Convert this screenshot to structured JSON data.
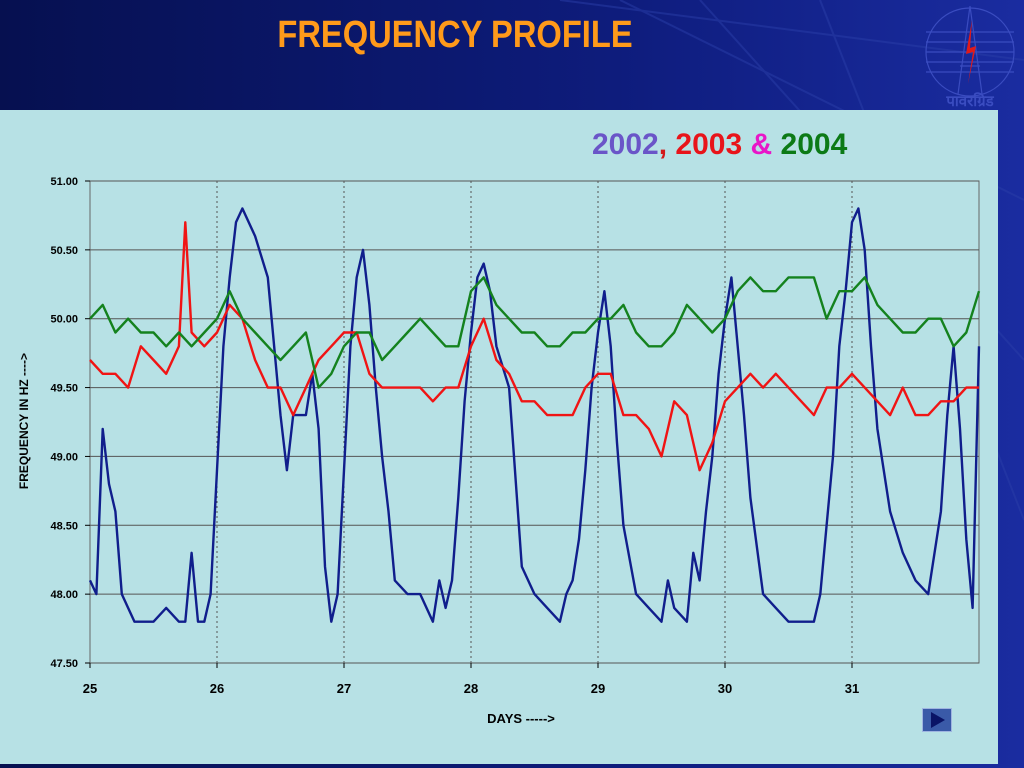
{
  "slide": {
    "title": "FREQUENCY PROFILE",
    "logo_text": "पावरग्रिड"
  },
  "legend_title": [
    {
      "text": "2002",
      "color": "#6a55c8"
    },
    {
      "text": ", ",
      "color": "#d21a1a"
    },
    {
      "text": "2003",
      "color": "#e8141a"
    },
    {
      "text": " & ",
      "color": "#e816c8"
    },
    {
      "text": "2004",
      "color": "#0c7a16"
    }
  ],
  "colors": {
    "background": "#0a1466",
    "panel": "#b7e1e5",
    "title": "#ff9a1a",
    "series_2002": "#101e8c",
    "series_2003": "#f01414",
    "series_2004": "#14821e"
  },
  "nav": {
    "next_icon": "play-next-icon"
  },
  "chart_data": {
    "type": "line",
    "title": "",
    "xlabel": "DAYS ----->",
    "ylabel": "FREQUENCY IN HZ ---->",
    "xlim": [
      25,
      32
    ],
    "ylim": [
      47.5,
      51.0
    ],
    "x_ticks": [
      25,
      26,
      27,
      28,
      29,
      30,
      31
    ],
    "x_tick_labels": [
      "25",
      "26",
      "27",
      "28",
      "29",
      "30",
      "31"
    ],
    "y_ticks": [
      47.5,
      48.0,
      48.5,
      49.0,
      49.5,
      50.0,
      50.5,
      51.0
    ],
    "y_tick_labels": [
      "47.50",
      "48.00",
      "48.50",
      "49.00",
      "49.50",
      "50.00",
      "50.50",
      "51.00"
    ],
    "grid": "horizontal solid, vertical dotted",
    "series": [
      {
        "name": "2002",
        "color": "#101e8c",
        "x": [
          25.0,
          25.05,
          25.1,
          25.15,
          25.2,
          25.25,
          25.3,
          25.35,
          25.4,
          25.5,
          25.6,
          25.7,
          25.75,
          25.8,
          25.85,
          25.9,
          25.95,
          26.0,
          26.05,
          26.1,
          26.15,
          26.2,
          26.3,
          26.4,
          26.5,
          26.55,
          26.6,
          26.7,
          26.75,
          26.8,
          26.85,
          26.9,
          26.95,
          27.0,
          27.05,
          27.1,
          27.15,
          27.2,
          27.25,
          27.3,
          27.35,
          27.4,
          27.5,
          27.6,
          27.7,
          27.75,
          27.8,
          27.85,
          27.9,
          27.95,
          28.0,
          28.05,
          28.1,
          28.15,
          28.2,
          28.3,
          28.4,
          28.5,
          28.6,
          28.7,
          28.75,
          28.8,
          28.85,
          28.9,
          28.95,
          29.0,
          29.05,
          29.1,
          29.15,
          29.2,
          29.3,
          29.4,
          29.5,
          29.55,
          29.6,
          29.7,
          29.75,
          29.8,
          29.85,
          29.9,
          29.95,
          30.0,
          30.05,
          30.1,
          30.15,
          30.2,
          30.3,
          30.4,
          30.5,
          30.6,
          30.7,
          30.75,
          30.8,
          30.85,
          30.9,
          30.95,
          31.0,
          31.05,
          31.1,
          31.15,
          31.2,
          31.3,
          31.4,
          31.5,
          31.6,
          31.7,
          31.75,
          31.8,
          31.85,
          31.9,
          31.95,
          32.0
        ],
        "y": [
          48.1,
          48.0,
          49.2,
          48.8,
          48.6,
          48.0,
          47.9,
          47.8,
          47.8,
          47.8,
          47.9,
          47.8,
          47.8,
          48.3,
          47.8,
          47.8,
          48.0,
          48.9,
          49.8,
          50.3,
          50.7,
          50.8,
          50.6,
          50.3,
          49.3,
          48.9,
          49.3,
          49.3,
          49.6,
          49.2,
          48.2,
          47.8,
          48.0,
          48.9,
          49.8,
          50.3,
          50.5,
          50.1,
          49.5,
          49.0,
          48.6,
          48.1,
          48.0,
          48.0,
          47.8,
          48.1,
          47.9,
          48.1,
          48.7,
          49.4,
          49.9,
          50.3,
          50.4,
          50.2,
          49.8,
          49.5,
          48.2,
          48.0,
          47.9,
          47.8,
          48.0,
          48.1,
          48.4,
          48.9,
          49.5,
          49.9,
          50.2,
          49.8,
          49.1,
          48.5,
          48.0,
          47.9,
          47.8,
          48.1,
          47.9,
          47.8,
          48.3,
          48.1,
          48.6,
          49.0,
          49.6,
          50.0,
          50.3,
          49.8,
          49.3,
          48.7,
          48.0,
          47.9,
          47.8,
          47.8,
          47.8,
          48.0,
          48.5,
          49.0,
          49.8,
          50.2,
          50.7,
          50.8,
          50.5,
          49.8,
          49.2,
          48.6,
          48.3,
          48.1,
          48.0,
          48.6,
          49.3,
          49.8,
          49.2,
          48.4,
          47.9,
          49.8
        ]
      },
      {
        "name": "2003",
        "color": "#f01414",
        "x": [
          25.0,
          25.1,
          25.2,
          25.3,
          25.4,
          25.5,
          25.6,
          25.7,
          25.75,
          25.8,
          25.9,
          26.0,
          26.1,
          26.2,
          26.3,
          26.4,
          26.5,
          26.6,
          26.7,
          26.8,
          26.9,
          27.0,
          27.1,
          27.2,
          27.3,
          27.4,
          27.5,
          27.6,
          27.7,
          27.8,
          27.9,
          28.0,
          28.1,
          28.2,
          28.3,
          28.4,
          28.5,
          28.6,
          28.7,
          28.8,
          28.9,
          29.0,
          29.1,
          29.2,
          29.3,
          29.4,
          29.5,
          29.6,
          29.7,
          29.8,
          29.9,
          30.0,
          30.1,
          30.2,
          30.3,
          30.4,
          30.5,
          30.6,
          30.7,
          30.8,
          30.9,
          31.0,
          31.1,
          31.2,
          31.3,
          31.4,
          31.5,
          31.6,
          31.7,
          31.8,
          31.9,
          32.0
        ],
        "y": [
          49.7,
          49.6,
          49.6,
          49.5,
          49.8,
          49.7,
          49.6,
          49.8,
          50.7,
          49.9,
          49.8,
          49.9,
          50.1,
          50.0,
          49.7,
          49.5,
          49.5,
          49.3,
          49.5,
          49.7,
          49.8,
          49.9,
          49.9,
          49.6,
          49.5,
          49.5,
          49.5,
          49.5,
          49.4,
          49.5,
          49.5,
          49.8,
          50.0,
          49.7,
          49.6,
          49.4,
          49.4,
          49.3,
          49.3,
          49.3,
          49.5,
          49.6,
          49.6,
          49.3,
          49.3,
          49.2,
          49.0,
          49.4,
          49.3,
          48.9,
          49.1,
          49.4,
          49.5,
          49.6,
          49.5,
          49.6,
          49.5,
          49.4,
          49.3,
          49.5,
          49.5,
          49.6,
          49.5,
          49.4,
          49.3,
          49.5,
          49.3,
          49.3,
          49.4,
          49.4,
          49.5,
          49.5
        ]
      },
      {
        "name": "2004",
        "color": "#14821e",
        "x": [
          25.0,
          25.1,
          25.2,
          25.3,
          25.4,
          25.5,
          25.6,
          25.7,
          25.8,
          25.9,
          26.0,
          26.1,
          26.2,
          26.3,
          26.4,
          26.5,
          26.6,
          26.7,
          26.8,
          26.9,
          27.0,
          27.1,
          27.2,
          27.3,
          27.4,
          27.5,
          27.6,
          27.7,
          27.8,
          27.9,
          28.0,
          28.1,
          28.2,
          28.3,
          28.4,
          28.5,
          28.6,
          28.7,
          28.8,
          28.9,
          29.0,
          29.1,
          29.2,
          29.3,
          29.4,
          29.5,
          29.6,
          29.7,
          29.8,
          29.9,
          30.0,
          30.1,
          30.2,
          30.3,
          30.4,
          30.5,
          30.6,
          30.7,
          30.8,
          30.9,
          31.0,
          31.1,
          31.2,
          31.3,
          31.4,
          31.5,
          31.6,
          31.7,
          31.8,
          31.9,
          32.0
        ],
        "y": [
          50.0,
          50.1,
          49.9,
          50.0,
          49.9,
          49.9,
          49.8,
          49.9,
          49.8,
          49.9,
          50.0,
          50.2,
          50.0,
          49.9,
          49.8,
          49.7,
          49.8,
          49.9,
          49.5,
          49.6,
          49.8,
          49.9,
          49.9,
          49.7,
          49.8,
          49.9,
          50.0,
          49.9,
          49.8,
          49.8,
          50.2,
          50.3,
          50.1,
          50.0,
          49.9,
          49.9,
          49.8,
          49.8,
          49.9,
          49.9,
          50.0,
          50.0,
          50.1,
          49.9,
          49.8,
          49.8,
          49.9,
          50.1,
          50.0,
          49.9,
          50.0,
          50.2,
          50.3,
          50.2,
          50.2,
          50.3,
          50.3,
          50.3,
          50.0,
          50.2,
          50.2,
          50.3,
          50.1,
          50.0,
          49.9,
          49.9,
          50.0,
          50.0,
          49.8,
          49.9,
          50.2
        ]
      }
    ]
  }
}
